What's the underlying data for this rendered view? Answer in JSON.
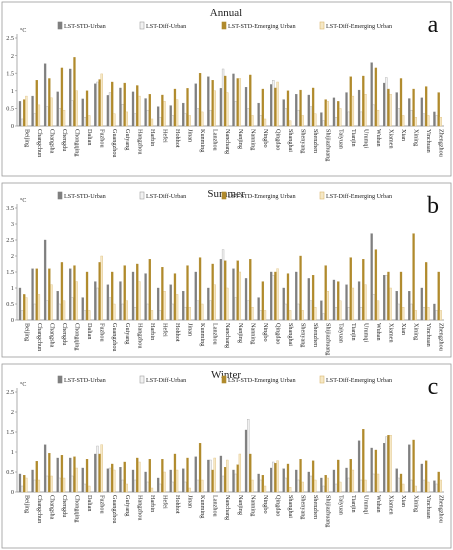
{
  "chart_data": [
    {
      "type": "bar",
      "panel_label": "a",
      "title": "Annual",
      "ylabel": "°C",
      "ylim": [
        0,
        2.5
      ],
      "yticks": [
        0,
        0.5,
        1,
        1.5,
        2,
        2.5
      ],
      "grid": false,
      "legend_position": "top",
      "categories": [
        "Beijing",
        "Changchun",
        "Changsha",
        "Chengdu",
        "Chongqing",
        "Dalian",
        "Fuzhou",
        "Guangzhou",
        "Guiyang",
        "Hangzhou",
        "Harbin",
        "Hefei",
        "Hohhot",
        "Jinan",
        "Kunming",
        "Lanzhou",
        "Nanchang",
        "Nanjing",
        "Nanning",
        "Ningbo",
        "Qingdao",
        "Shanghai",
        "Shenyang",
        "Shenzhen",
        "Shijiazhuang",
        "Taiyuan",
        "Tianjin",
        "Urumqi",
        "Wuhan",
        "Xiamen",
        "Xian",
        "Xining",
        "Yinchuan",
        "Zhengzhou"
      ],
      "series": [
        {
          "name": "LST-STD-Urban",
          "values": [
            0.7,
            0.85,
            1.77,
            0.97,
            1.62,
            0.77,
            1.2,
            0.87,
            1.08,
            0.97,
            0.78,
            0.55,
            0.58,
            0.65,
            1.2,
            1.4,
            1.07,
            1.48,
            1.1,
            0.65,
            1.18,
            0.75,
            0.9,
            0.88,
            0.38,
            0.8,
            0.95,
            1.02,
            1.8,
            1.22,
            0.95,
            0.78,
            0.8,
            0.4
          ]
        },
        {
          "name": "LST-Diff-Urban",
          "values": [
            0.2,
            0.35,
            0.55,
            0.5,
            0.72,
            0.25,
            1.25,
            0.95,
            0.62,
            0.35,
            0.45,
            0.25,
            0.3,
            0.35,
            0.5,
            0.45,
            1.62,
            0.7,
            0.5,
            0.3,
            1.3,
            0.5,
            0.45,
            0.55,
            0.15,
            0.25,
            0.4,
            0.4,
            0.6,
            1.38,
            0.5,
            0.45,
            0.35,
            0.3
          ]
        },
        {
          "name": "LST-STD-Emerging Urban",
          "values": [
            0.75,
            1.3,
            1.35,
            1.65,
            1.95,
            1.0,
            1.32,
            1.25,
            1.22,
            1.15,
            0.9,
            0.88,
            1.05,
            1.07,
            1.5,
            1.3,
            1.42,
            1.35,
            1.45,
            1.05,
            1.08,
            1.0,
            1.02,
            1.08,
            0.75,
            0.7,
            1.4,
            1.42,
            1.65,
            1.05,
            1.35,
            1.05,
            1.12,
            0.95
          ]
        },
        {
          "name": "LST-Diff-Emerging Urban",
          "values": [
            0.85,
            0.6,
            0.8,
            0.45,
            1.0,
            0.3,
            1.48,
            0.35,
            0.4,
            0.85,
            0.2,
            0.7,
            0.75,
            0.3,
            0.4,
            1.0,
            0.95,
            1.35,
            0.3,
            0.2,
            1.25,
            0.15,
            0.3,
            0.35,
            0.7,
            0.5,
            0.85,
            0.9,
            0.45,
            0.9,
            0.3,
            0.25,
            0.3,
            0.25
          ]
        }
      ]
    },
    {
      "type": "bar",
      "panel_label": "b",
      "title": "Summer",
      "ylabel": "°C",
      "ylim": [
        0,
        3.5
      ],
      "yticks": [
        0,
        0.5,
        1,
        1.5,
        2,
        2.5,
        3,
        3.5
      ],
      "grid": false,
      "legend_position": "top",
      "categories": [
        "Beijing",
        "Changchun",
        "Changsha",
        "Chengdu",
        "Chongqing",
        "Dalian",
        "Fuzhou",
        "Guangzhou",
        "Guiyang",
        "Hangzhou",
        "Harbin",
        "Hefei",
        "Hohhot",
        "Jinan",
        "Kunming",
        "Lanzhou",
        "Nanchang",
        "Nanjing",
        "Nanning",
        "Ningbo",
        "Qingdao",
        "Shanghai",
        "Shenyang",
        "Shenzhen",
        "Shijiazhuang",
        "Taiyuan",
        "Tianjin",
        "Urumqi",
        "Wuhan",
        "Xiamen",
        "Xian",
        "Xining",
        "Yinchuan",
        "Zhengzhou"
      ],
      "series": [
        {
          "name": "LST-STD-Urban",
          "values": [
            1.0,
            1.6,
            2.5,
            0.9,
            1.6,
            0.7,
            1.2,
            1.1,
            1.2,
            1.5,
            1.45,
            1.0,
            1.1,
            0.9,
            1.5,
            1.0,
            1.9,
            1.6,
            1.3,
            0.7,
            1.5,
            1.0,
            1.5,
            1.3,
            0.6,
            1.25,
            1.1,
            1.2,
            2.7,
            1.4,
            0.9,
            0.9,
            1.0,
            0.5
          ]
        },
        {
          "name": "LST-Diff-Urban",
          "values": [
            0.3,
            0.5,
            0.6,
            0.5,
            0.7,
            0.3,
            1.0,
            0.7,
            0.5,
            0.4,
            0.5,
            0.3,
            0.5,
            0.4,
            0.6,
            0.6,
            2.2,
            0.7,
            0.6,
            0.3,
            1.4,
            0.5,
            0.5,
            0.6,
            0.2,
            0.4,
            0.4,
            0.4,
            0.8,
            1.4,
            0.5,
            0.5,
            0.4,
            0.3
          ]
        },
        {
          "name": "LST-STD-Emerging Urban",
          "values": [
            0.8,
            1.6,
            1.6,
            1.8,
            1.7,
            1.5,
            1.8,
            1.5,
            1.7,
            1.75,
            1.9,
            1.65,
            1.45,
            1.7,
            1.95,
            1.75,
            1.85,
            1.85,
            1.9,
            1.2,
            1.5,
            1.45,
            2.0,
            1.4,
            1.7,
            1.2,
            1.95,
            1.9,
            2.2,
            1.5,
            1.5,
            2.7,
            1.8,
            1.5
          ]
        },
        {
          "name": "LST-Diff-Emerging Urban",
          "values": [
            0.7,
            0.8,
            1.1,
            0.6,
            1.2,
            0.3,
            2.0,
            0.5,
            0.6,
            1.2,
            0.3,
            0.9,
            0.8,
            0.4,
            0.5,
            1.1,
            1.0,
            1.5,
            0.4,
            0.3,
            1.6,
            0.3,
            0.3,
            0.4,
            0.9,
            0.6,
            1.0,
            1.1,
            0.6,
            1.0,
            0.4,
            0.3,
            0.4,
            0.3
          ]
        }
      ]
    },
    {
      "type": "bar",
      "panel_label": "c",
      "title": "Winter",
      "ylabel": "°C",
      "ylim": [
        0,
        2.5
      ],
      "yticks": [
        0,
        0.5,
        1,
        1.5,
        2,
        2.5
      ],
      "grid": false,
      "legend_position": "top",
      "categories": [
        "Beijing",
        "Changchun",
        "Changsha",
        "Chengdu",
        "Chongqing",
        "Dalian",
        "Fuzhou",
        "Guangzhou",
        "Guiyang",
        "Hangzhou",
        "Harbin",
        "Hefei",
        "Hohhot",
        "Jinan",
        "Kunming",
        "Lanzhou",
        "Nanchang",
        "Nanjing",
        "Nanning",
        "Ningbo",
        "Qingdao",
        "Shanghai",
        "Shenyang",
        "Shenzhen",
        "Shijiazhuang",
        "Taiyuan",
        "Tianjin",
        "Urumqi",
        "Wuhan",
        "Xiamen",
        "Xian",
        "Xining",
        "Yinchuan",
        "Zhengzhou"
      ],
      "series": [
        {
          "name": "LST-STD-Urban",
          "values": [
            0.45,
            0.55,
            1.18,
            0.85,
            0.85,
            0.6,
            0.95,
            0.58,
            0.62,
            0.55,
            0.5,
            0.35,
            0.55,
            0.58,
            0.88,
            0.8,
            0.9,
            0.55,
            1.55,
            0.45,
            0.6,
            0.58,
            0.55,
            0.5,
            0.35,
            0.55,
            0.6,
            1.28,
            1.1,
            1.22,
            0.58,
            1.18,
            0.7,
            0.28
          ]
        },
        {
          "name": "LST-Diff-Urban",
          "values": [
            0.15,
            0.3,
            0.4,
            0.35,
            0.4,
            0.2,
            1.15,
            0.6,
            0.3,
            0.3,
            0.25,
            0.2,
            0.25,
            0.25,
            0.3,
            0.8,
            0.4,
            0.45,
            1.82,
            0.3,
            0.75,
            0.35,
            0.3,
            0.4,
            0.15,
            0.2,
            0.35,
            0.3,
            0.45,
            1.38,
            0.35,
            0.3,
            0.3,
            0.2
          ]
        },
        {
          "name": "LST-STD-Emerging Urban",
          "values": [
            0.42,
            0.77,
            0.97,
            0.92,
            0.88,
            0.82,
            0.95,
            0.7,
            0.75,
            0.85,
            0.82,
            0.82,
            0.95,
            0.85,
            1.22,
            0.55,
            0.62,
            0.68,
            0.95,
            0.42,
            0.72,
            0.7,
            0.82,
            0.78,
            0.42,
            0.8,
            0.82,
            1.57,
            1.05,
            1.42,
            0.45,
            1.3,
            0.78,
            0.5
          ]
        },
        {
          "name": "LST-Diff-Emerging Urban",
          "values": [
            0.35,
            0.3,
            0.4,
            0.35,
            0.6,
            0.15,
            1.18,
            0.55,
            0.2,
            0.75,
            0.1,
            0.5,
            0.55,
            0.1,
            0.3,
            0.85,
            0.8,
            0.95,
            0.3,
            0.15,
            0.78,
            0.12,
            0.25,
            0.3,
            0.35,
            0.25,
            0.55,
            0.3,
            0.45,
            1.42,
            0.2,
            0.15,
            0.25,
            0.3
          ]
        }
      ]
    }
  ],
  "colors": {
    "lst_std_urban": "#7f7f7f",
    "lst_diff_urban": "#f2f2f2",
    "lst_std_emerging": "#b08a2c",
    "lst_diff_emerging": "#f6e8c6",
    "border": "#9a9a9a",
    "axis": "#888888"
  }
}
